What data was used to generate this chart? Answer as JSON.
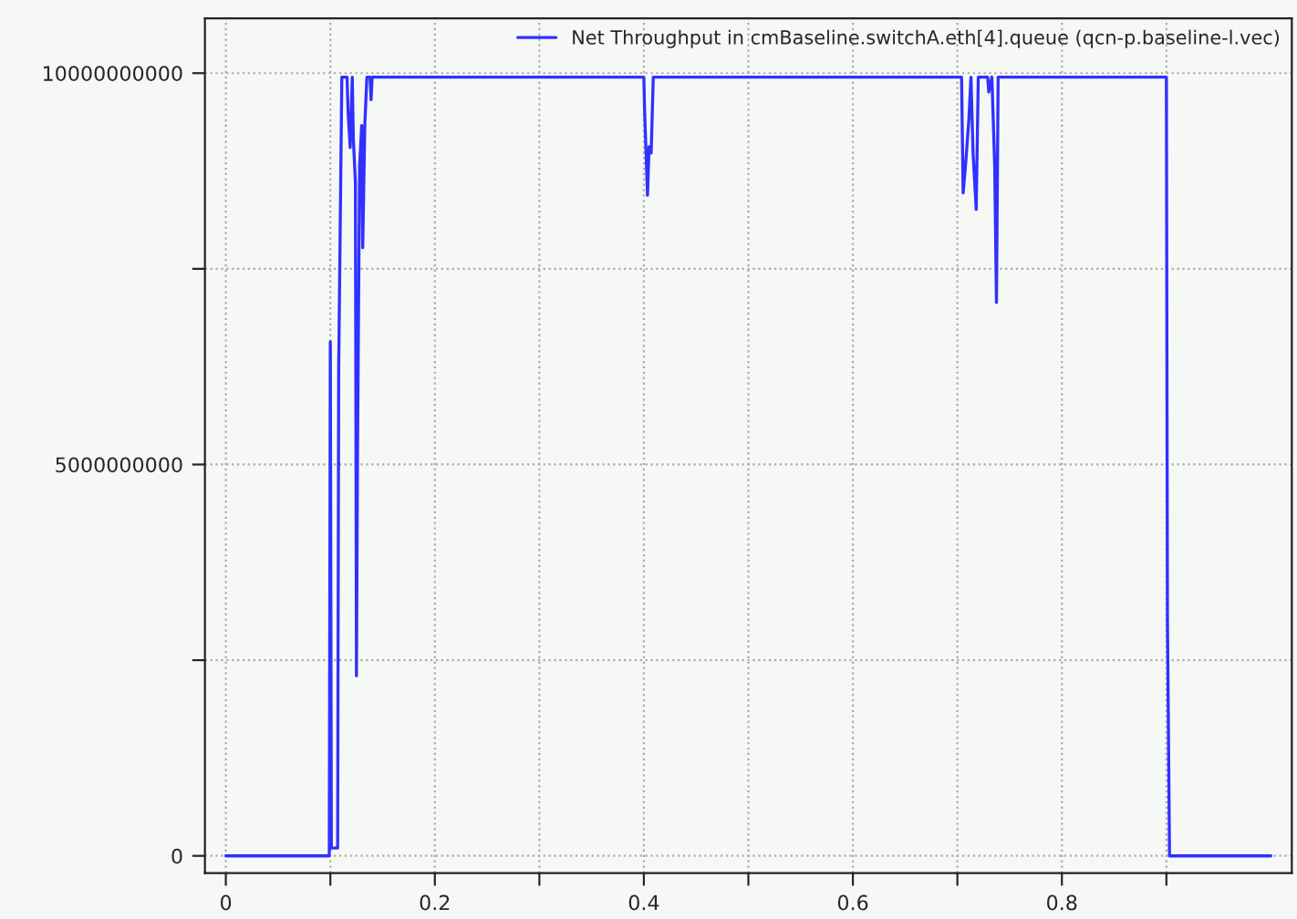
{
  "chart_data": {
    "type": "line",
    "x": [
      0,
      0.099,
      0.1,
      0.1005,
      0.101,
      0.107,
      0.108,
      0.111,
      0.116,
      0.117,
      0.119,
      0.121,
      0.122,
      0.124,
      0.125,
      0.126,
      0.128,
      0.13,
      0.131,
      0.133,
      0.135,
      0.138,
      0.139,
      0.14,
      0.4,
      0.4007,
      0.4035,
      0.405,
      0.407,
      0.409,
      0.704,
      0.7055,
      0.708,
      0.711,
      0.713,
      0.715,
      0.718,
      0.72,
      0.729,
      0.73,
      0.733,
      0.7357,
      0.7374,
      0.739,
      0.9,
      0.901,
      0.903,
      1.0
    ],
    "series": [
      {
        "name": "Net Throughput in cmBaseline.switchA.eth[4].queue (qcn-p.baseline-l.vec)",
        "color": "#3030ff",
        "values": [
          0,
          0,
          6570000000,
          3320000000,
          100000000,
          100000000,
          6230000000,
          9950000000,
          9950000000,
          9500000000,
          9050000000,
          9950000000,
          9170000000,
          8600000000,
          2300000000,
          5170000000,
          8820000000,
          9330000000,
          7770000000,
          9350000000,
          9950000000,
          9950000000,
          9660000000,
          9950000000,
          9950000000,
          9530000000,
          8440000000,
          9060000000,
          8980000000,
          9950000000,
          9950000000,
          8470000000,
          8860000000,
          9410000000,
          9950000000,
          8980000000,
          8260000000,
          9950000000,
          9950000000,
          9760000000,
          9950000000,
          8820000000,
          7070000000,
          9950000000,
          9950000000,
          3020000000,
          0,
          0
        ]
      }
    ],
    "xlim": [
      -0.02,
      1.02
    ],
    "ylim": [
      -220000000,
      10700000000
    ],
    "xticks": [
      0,
      {
        "value": 0.1,
        "label": null
      },
      0.2,
      {
        "value": 0.3,
        "label": null
      },
      0.4,
      {
        "value": 0.5,
        "label": null
      },
      0.6,
      {
        "value": 0.7,
        "label": null
      },
      0.8,
      {
        "value": 0.9,
        "label": null
      }
    ],
    "yticks": [
      0,
      {
        "value": 2500000000,
        "label": null
      },
      5000000000,
      {
        "value": 7500000000,
        "label": null
      },
      10000000000
    ],
    "grid": true,
    "legend": "top right",
    "marker": "none",
    "line_style": "solid"
  }
}
